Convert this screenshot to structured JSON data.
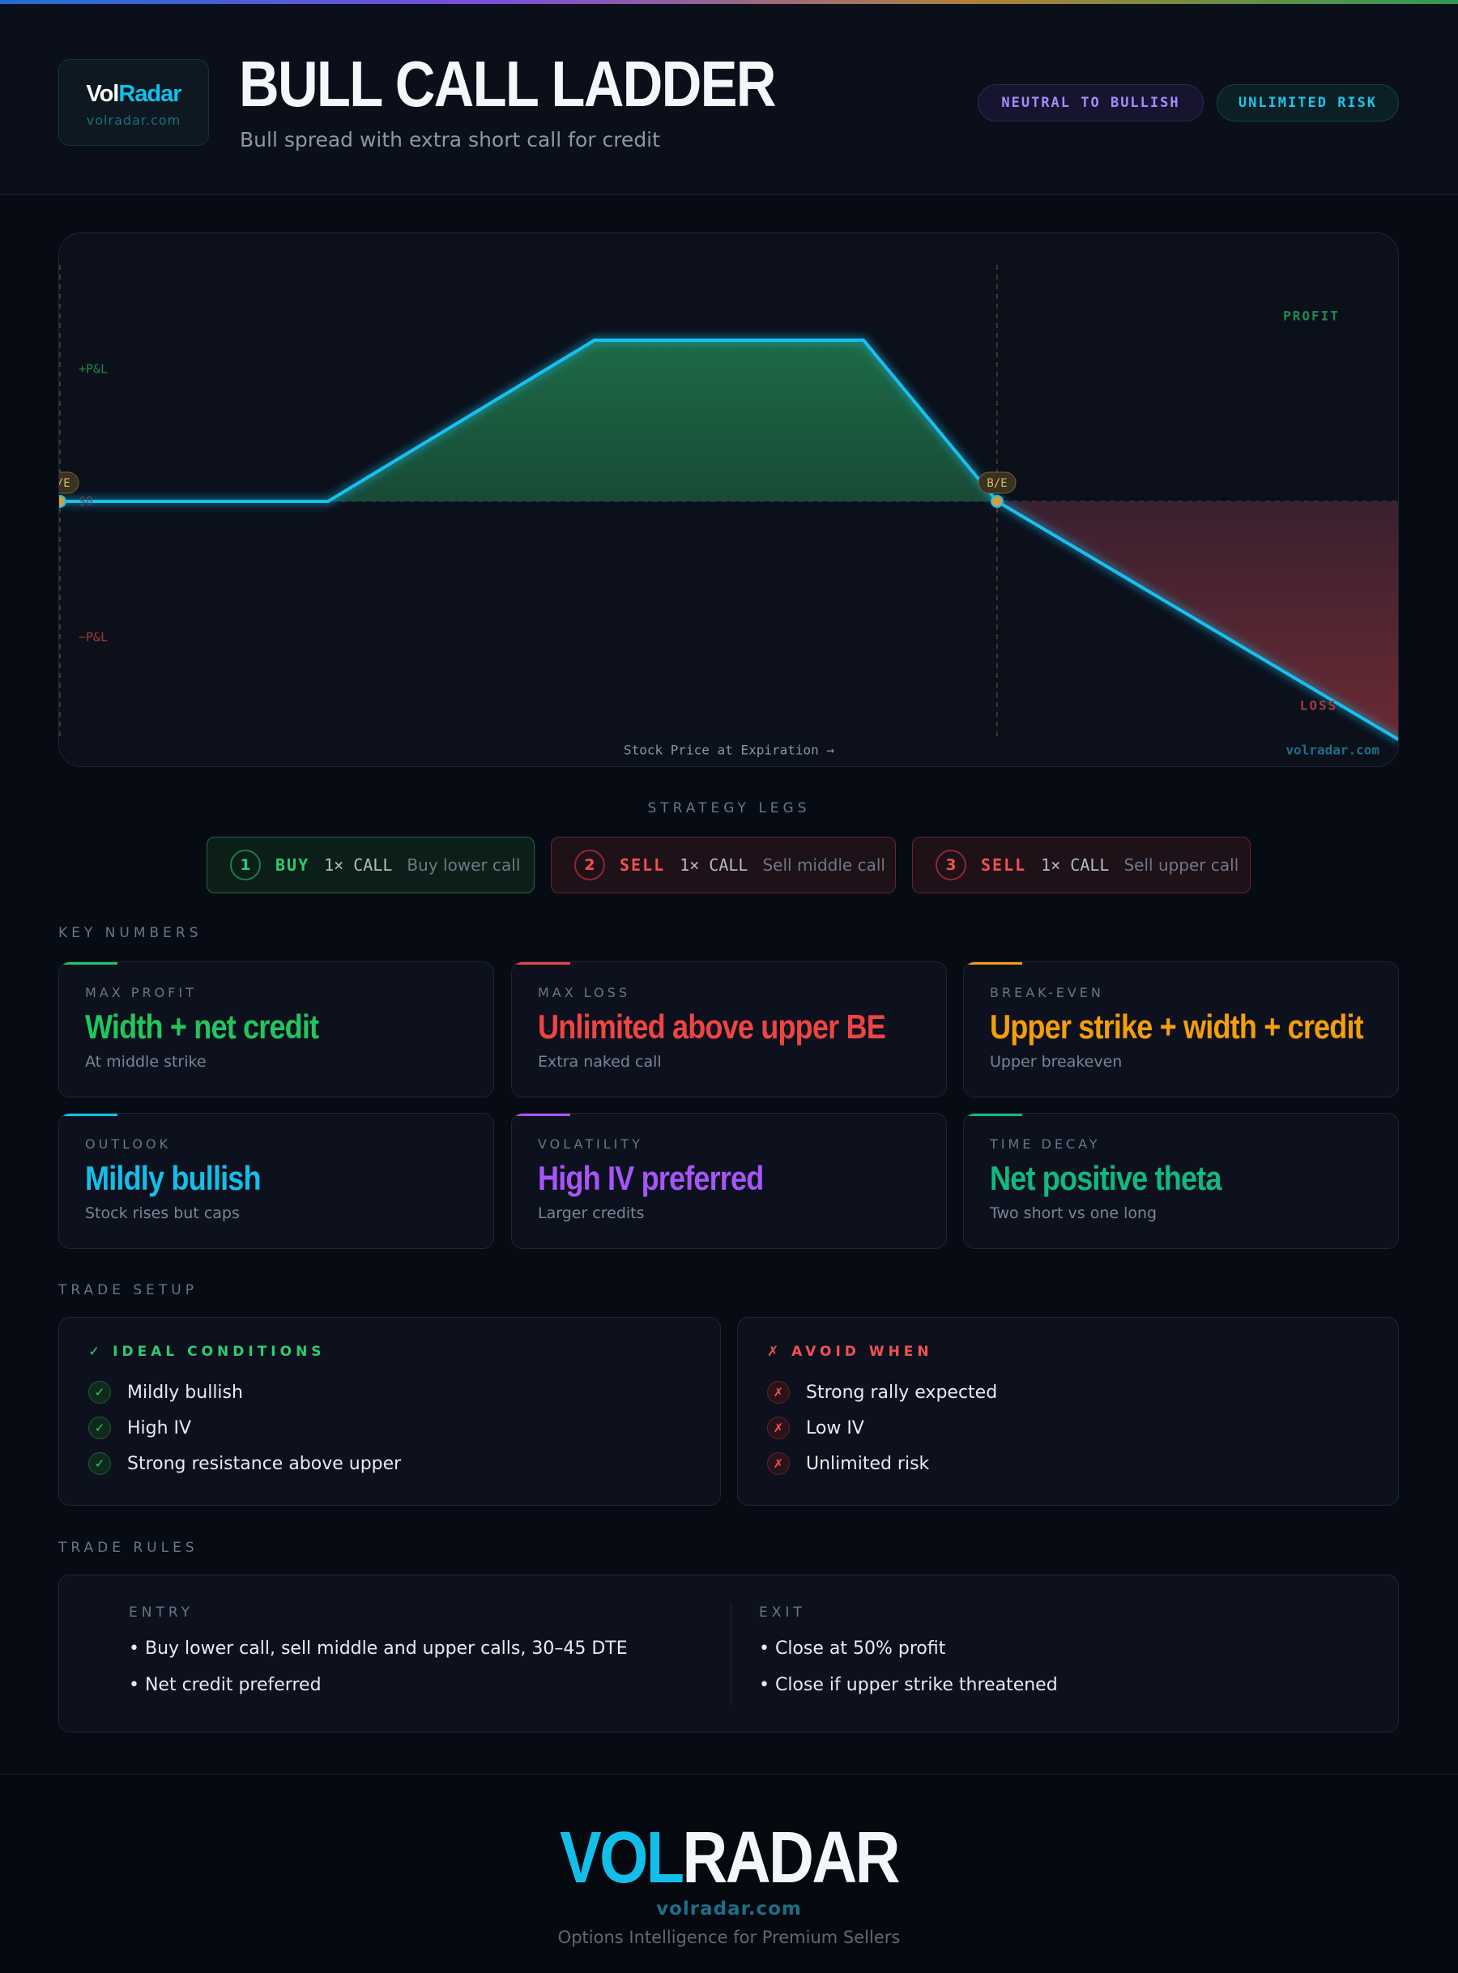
{
  "header": {
    "logo": {
      "vol": "Vol",
      "radar": "Radar",
      "url": "volradar.com"
    },
    "title": "BULL CALL LADDER",
    "subtitle": "Bull spread with extra short call for credit",
    "badges": [
      "NEUTRAL TO BULLISH",
      "UNLIMITED RISK"
    ]
  },
  "diagram": {
    "profit_label": "PROFIT",
    "loss_label": "LOSS",
    "positive_label": "+P&L",
    "negative_label": "−P&L",
    "zero_label": "$0",
    "breakeven_label": "B/E",
    "x_axis_label": "Stock Price at Expiration →",
    "watermark": "volradar.com"
  },
  "legs": {
    "title": "STRATEGY LEGS",
    "items": [
      {
        "number": "1",
        "action": "BUY",
        "contract": "1× CALL",
        "description": "Buy lower call"
      },
      {
        "number": "2",
        "action": "SELL",
        "contract": "1× CALL",
        "description": "Sell middle call"
      },
      {
        "number": "3",
        "action": "SELL",
        "contract": "1× CALL",
        "description": "Sell upper call"
      }
    ]
  },
  "key_numbers": {
    "title": "KEY NUMBERS",
    "cards": [
      {
        "label": "MAX PROFIT",
        "value": "Width + net credit",
        "note": "At middle strike"
      },
      {
        "label": "MAX LOSS",
        "value": "Unlimited above upper BE",
        "note": "Extra naked call"
      },
      {
        "label": "BREAK-EVEN",
        "value": "Upper strike + width + credit",
        "note": "Upper breakeven"
      },
      {
        "label": "OUTLOOK",
        "value": "Mildly bullish",
        "note": "Stock rises but caps"
      },
      {
        "label": "VOLATILITY",
        "value": "High IV preferred",
        "note": "Larger credits"
      },
      {
        "label": "TIME DECAY",
        "value": "Net positive theta",
        "note": "Two short vs one long"
      }
    ]
  },
  "trade_setup": {
    "title": "TRADE SETUP",
    "ideal": {
      "title": "✓ IDEAL CONDITIONS",
      "items": [
        "Mildly bullish",
        "High IV",
        "Strong resistance above upper"
      ]
    },
    "avoid": {
      "title": "✗ AVOID WHEN",
      "items": [
        "Strong rally expected",
        "Low IV",
        "Unlimited risk"
      ]
    }
  },
  "trade_rules": {
    "title": "TRADE RULES",
    "entry": {
      "title": "ENTRY",
      "items": [
        "• Buy lower call, sell middle and upper calls, 30–45 DTE",
        "• Net credit preferred"
      ]
    },
    "exit": {
      "title": "EXIT",
      "items": [
        "• Close at 50% profit",
        "• Close if upper strike threatened"
      ]
    }
  },
  "footer": {
    "logo_vol": "VOL",
    "logo_radar": "RADAR",
    "url": "volradar.com",
    "tagline": "Options Intelligence for Premium Sellers"
  }
}
